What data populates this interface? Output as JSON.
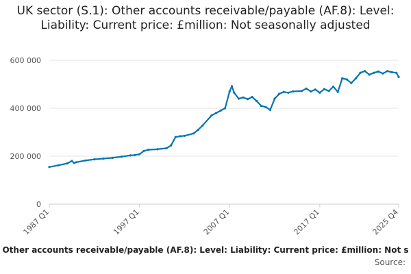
{
  "chart_data": {
    "type": "line",
    "title": "UK sector (S.1): Other accounts receivable/payable (AF.8): Level: Liability: Current price: £million: Not seasonally adjusted",
    "xlabel": "",
    "ylabel": "",
    "ylim": [
      0,
      600000
    ],
    "y_ticks": [
      {
        "value": 0,
        "label": "0"
      },
      {
        "value": 200000,
        "label": "200 000"
      },
      {
        "value": 400000,
        "label": "400 000"
      },
      {
        "value": 600000,
        "label": "600 000"
      }
    ],
    "x_ticks": [
      {
        "value": 1987.0,
        "label": "1987 Q1"
      },
      {
        "value": 1997.0,
        "label": "1997 Q1"
      },
      {
        "value": 2007.0,
        "label": "2007 Q1"
      },
      {
        "value": 2017.0,
        "label": "2017 Q1"
      },
      {
        "value": 2025.75,
        "label": "2025 Q4"
      }
    ],
    "xlim": [
      1987.0,
      2025.75
    ],
    "grid": "horizontal",
    "series": [
      {
        "color": "#0075b0",
        "x": [
          1987.0,
          1988.0,
          1989.0,
          1989.5,
          1989.75,
          1990.0,
          1991.0,
          1992.0,
          1993.0,
          1994.0,
          1995.0,
          1996.0,
          1996.5,
          1997.0,
          1997.5,
          1998.0,
          1999.0,
          2000.0,
          2000.5,
          2001.0,
          2001.5,
          2002.0,
          2003.0,
          2003.5,
          2004.0,
          2005.0,
          2005.5,
          2006.0,
          2006.5,
          2007.0,
          2007.25,
          2007.5,
          2008.0,
          2008.5,
          2009.0,
          2009.5,
          2010.0,
          2010.5,
          2011.0,
          2011.5,
          2012.0,
          2012.5,
          2013.0,
          2013.5,
          2014.0,
          2015.0,
          2015.5,
          2016.0,
          2016.5,
          2017.0,
          2017.5,
          2018.0,
          2018.5,
          2019.0,
          2019.5,
          2020.0,
          2020.5,
          2021.0,
          2021.5,
          2022.0,
          2022.5,
          2023.0,
          2023.5,
          2024.0,
          2024.5,
          2025.0,
          2025.5,
          2025.75
        ],
        "values": [
          155000,
          162000,
          170000,
          180000,
          172000,
          175000,
          182000,
          187000,
          190000,
          193000,
          198000,
          203000,
          205000,
          208000,
          222000,
          227000,
          229000,
          233000,
          245000,
          280000,
          283000,
          285000,
          295000,
          310000,
          328000,
          370000,
          380000,
          390000,
          400000,
          470000,
          492000,
          465000,
          440000,
          445000,
          438000,
          447000,
          430000,
          410000,
          405000,
          393000,
          440000,
          460000,
          468000,
          465000,
          470000,
          472000,
          482000,
          470000,
          478000,
          465000,
          480000,
          472000,
          490000,
          468000,
          525000,
          520000,
          505000,
          525000,
          548000,
          555000,
          540000,
          548000,
          553000,
          545000,
          555000,
          550000,
          548000,
          530000
        ]
      }
    ]
  },
  "footer": {
    "note": "Other accounts receivable/payable (AF.8): Level: Liability: Current price: £million: Not s",
    "source": "Source:"
  }
}
